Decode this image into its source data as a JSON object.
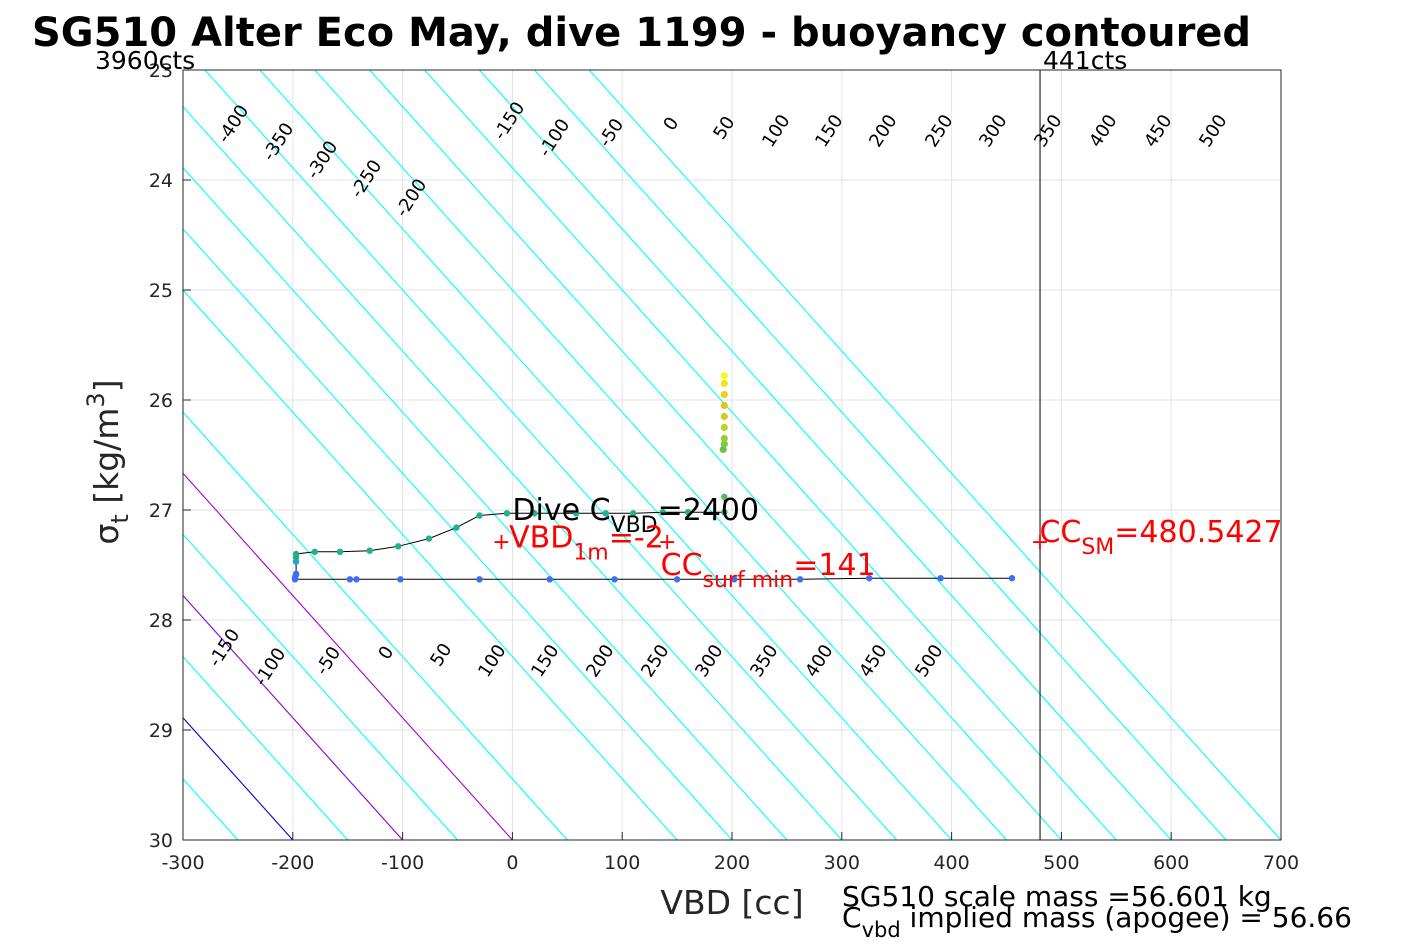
{
  "chart_data": {
    "type": "scatter",
    "title": "SG510 Alter Eco May, dive 1199 - buoyancy contoured",
    "xlabel": "VBD [cc]",
    "ylabel": {
      "base": "σ",
      "sub": "t",
      "unit_pre": " [kg/m",
      "unit_sup": "3",
      "unit_post": "]"
    },
    "xlim": [
      -300,
      700
    ],
    "ylim": [
      23,
      30
    ],
    "y_reversed": true,
    "grid": true,
    "x_ticks": [
      -300,
      -200,
      -100,
      0,
      100,
      200,
      300,
      400,
      500,
      600,
      700
    ],
    "x_tick_labels": [
      "-300",
      "-200",
      "-100",
      "0",
      "100",
      "200",
      "300",
      "400",
      "500",
      "600",
      "700"
    ],
    "y_ticks": [
      23,
      24,
      25,
      26,
      27,
      28,
      29,
      30
    ],
    "y_tick_labels": [
      "23",
      "24",
      "25",
      "26",
      "27",
      "28",
      "29",
      "30"
    ],
    "corner_labels": {
      "left": "3960cts",
      "right": "441cts"
    },
    "contour_line_slope_cc_per_sigma": 90,
    "contours": {
      "cyan": {
        "color": "#00ffff",
        "x_at_30": [
          -650,
          -600,
          -550,
          -500,
          -450,
          -400,
          -350,
          -300,
          -250,
          -150,
          -100,
          -50,
          50,
          150,
          200,
          250,
          300,
          350,
          400,
          450,
          500,
          550,
          600,
          650,
          700
        ]
      },
      "blue": {
        "color": "#0000cc",
        "x_at_30": [
          -200
        ]
      },
      "purple": {
        "color": "#aa00cc",
        "x_at_30": [
          -100,
          0
        ]
      }
    },
    "contour_labels_top": [
      "-400",
      "-350",
      "-300",
      "-250",
      "-200",
      "-150",
      "-100",
      "-50",
      "0",
      "50",
      "100",
      "150",
      "200",
      "250",
      "300",
      "350",
      "400",
      "450",
      "500"
    ],
    "contour_labels_bottom": [
      "-150",
      "-100",
      "-50",
      "0",
      "50",
      "100",
      "150",
      "200",
      "250",
      "300",
      "350",
      "400",
      "450",
      "500"
    ],
    "descent_series": {
      "name": "dive",
      "points": [
        [
          455,
          27.62
        ],
        [
          390,
          27.62
        ],
        [
          325,
          27.62
        ],
        [
          262,
          27.63
        ],
        [
          202,
          27.63
        ],
        [
          150,
          27.63
        ],
        [
          93,
          27.63
        ],
        [
          34,
          27.63
        ],
        [
          -30,
          27.63
        ],
        [
          -102,
          27.63
        ],
        [
          -142,
          27.63
        ],
        [
          -148,
          27.63
        ],
        [
          -198,
          27.63
        ],
        [
          -198,
          27.61
        ],
        [
          -197,
          27.59
        ],
        [
          -197,
          27.58
        ],
        [
          -197,
          27.47
        ],
        [
          -197,
          27.43
        ],
        [
          -197,
          27.4
        ],
        [
          -180,
          27.38
        ],
        [
          -157,
          27.38
        ],
        [
          -130,
          27.37
        ],
        [
          -104,
          27.33
        ],
        [
          -76,
          27.26
        ],
        [
          -51,
          27.16
        ],
        [
          -30,
          27.05
        ],
        [
          -5,
          27.03
        ],
        [
          20,
          27.03
        ],
        [
          58,
          27.03
        ],
        [
          85,
          27.03
        ],
        [
          110,
          27.03
        ],
        [
          137,
          27.02
        ],
        [
          160,
          27.02
        ],
        [
          193,
          27.02
        ],
        [
          193,
          26.88
        ]
      ]
    },
    "apogee_series": {
      "name": "apogee",
      "points": [
        [
          192,
          26.45
        ],
        [
          193,
          26.4
        ],
        [
          193,
          26.35
        ],
        [
          193,
          26.25
        ],
        [
          193,
          26.15
        ],
        [
          193,
          26.05
        ],
        [
          193,
          25.95
        ],
        [
          193,
          25.85
        ],
        [
          193,
          25.78
        ]
      ],
      "colors": [
        "#6cc24a",
        "#7ccb3c",
        "#92d130",
        "#b6d820",
        "#d6c81e",
        "#e8c21a",
        "#eed21a",
        "#f4e41c",
        "#f8f81f"
      ]
    },
    "annotations": [
      {
        "name": "dive-cvbd",
        "text_main": "Dive C",
        "text_sub": "VBD",
        "text_tail": "=2400",
        "x": 0,
        "y": 27.0,
        "color": "#000000"
      },
      {
        "name": "vbd-1m",
        "text_main": "VBD",
        "text_sub": "1m",
        "text_tail": "=-2",
        "x": -3,
        "y": 27.25,
        "color": "#ff0000",
        "marker": [
          -10,
          27.28
        ]
      },
      {
        "name": "cc-surf-min",
        "text_main": "CC",
        "text_sub": "surf min",
        "text_tail": "=141",
        "x": 135,
        "y": 27.5,
        "color": "#ff0000",
        "marker": [
          141,
          27.28
        ]
      },
      {
        "name": "cc-sm",
        "text_main": "CC",
        "text_sub": "SM",
        "text_tail": "=480.5427",
        "x": 480,
        "y": 27.2,
        "color": "#ff0000",
        "marker": [
          480.5,
          27.28
        ]
      }
    ],
    "cc_sm_vertical_line": 480.5427,
    "footer": {
      "line1": "SG510 scale mass =56.601 kg",
      "line2_main": "C",
      "line2_sub": "vbd",
      "line2_tail": " implied mass (apogee) = 56.66"
    }
  }
}
